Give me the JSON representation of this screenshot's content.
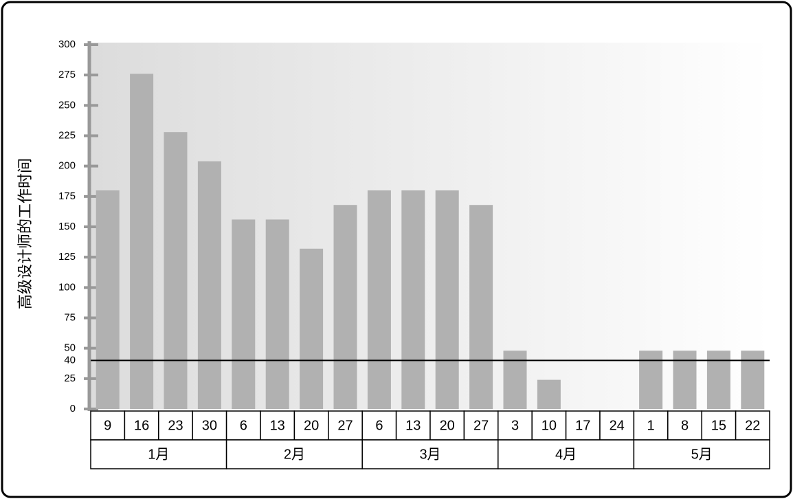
{
  "chart_data": {
    "type": "bar",
    "y_label": "高级设计师的工作时间",
    "color": "#b1b1b1",
    "groups": [
      {
        "label": "1月",
        "categories": [
          "9",
          "16",
          "23",
          "30"
        ],
        "values": [
          180,
          276,
          228,
          204
        ]
      },
      {
        "label": "2月",
        "categories": [
          "6",
          "13",
          "20",
          "27"
        ],
        "values": [
          156,
          156,
          132,
          168
        ]
      },
      {
        "label": "3月",
        "categories": [
          "6",
          "13",
          "20",
          "27"
        ],
        "values": [
          180,
          180,
          180,
          168
        ]
      },
      {
        "label": "4月",
        "categories": [
          "3",
          "10",
          "17",
          "24"
        ],
        "values": [
          48,
          24,
          0,
          0
        ]
      },
      {
        "label": "5月",
        "categories": [
          "1",
          "8",
          "15",
          "22"
        ],
        "values": [
          48,
          48,
          48,
          48
        ]
      }
    ],
    "reference_line": 40,
    "ylim": [
      0,
      300
    ],
    "yticks": [
      0,
      25,
      50,
      75,
      100,
      125,
      150,
      175,
      200,
      225,
      250,
      275,
      300
    ]
  }
}
